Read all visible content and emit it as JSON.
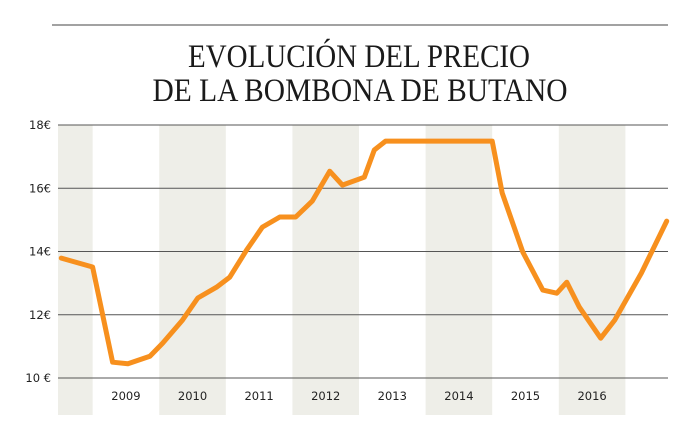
{
  "chart_data": {
    "type": "line",
    "title": [
      "EVOLUCIÓN DEL PRECIO",
      "DE LA BOMBONA DE BUTANO"
    ],
    "xlabel": "",
    "ylabel": "",
    "xlim": [
      2008.48,
      2017.64
    ],
    "ylim": [
      10,
      18
    ],
    "yticks": [
      {
        "value": 18,
        "label": "18€"
      },
      {
        "value": 16,
        "label": "16€"
      },
      {
        "value": 14,
        "label": "14€"
      },
      {
        "value": 12,
        "label": "12€"
      },
      {
        "value": 10,
        "label": "10 €"
      }
    ],
    "xticks": [
      {
        "value": 2009,
        "label": "2009"
      },
      {
        "value": 2010,
        "label": "2010"
      },
      {
        "value": 2011,
        "label": "2011"
      },
      {
        "value": 2012,
        "label": "2012"
      },
      {
        "value": 2013,
        "label": "2013"
      },
      {
        "value": 2014,
        "label": "2014"
      },
      {
        "value": 2015,
        "label": "2015"
      },
      {
        "value": 2016,
        "label": "2016"
      }
    ],
    "shaded_years": [
      [
        2008.48,
        2009
      ],
      [
        2010,
        2011
      ],
      [
        2012,
        2013
      ],
      [
        2014,
        2015
      ],
      [
        2016,
        2017
      ]
    ],
    "grid": true,
    "colors": {
      "line": "#f7901e",
      "band": "#eeeee8",
      "grid": "#555555"
    },
    "series": [
      {
        "x": [
          2008.53,
          2009.0,
          2009.3,
          2009.53,
          2009.86,
          2010.05,
          2010.35,
          2010.58,
          2010.86,
          2011.06,
          2011.31,
          2011.55,
          2011.81,
          2012.05,
          2012.3,
          2012.56,
          2012.75,
          2013.08,
          2013.23,
          2013.4,
          2015.0,
          2015.15,
          2015.46,
          2015.76,
          2015.97,
          2016.12,
          2016.31,
          2016.63,
          2016.84,
          2017.24,
          2017.62
        ],
        "y": [
          13.79,
          13.51,
          10.5,
          10.45,
          10.69,
          11.1,
          11.83,
          12.53,
          12.87,
          13.19,
          14.04,
          14.77,
          15.09,
          15.09,
          15.6,
          16.54,
          16.1,
          16.35,
          17.21,
          17.49,
          17.49,
          15.85,
          13.98,
          12.78,
          12.68,
          13.03,
          12.24,
          11.26,
          11.83,
          13.32,
          14.96
        ]
      }
    ]
  }
}
